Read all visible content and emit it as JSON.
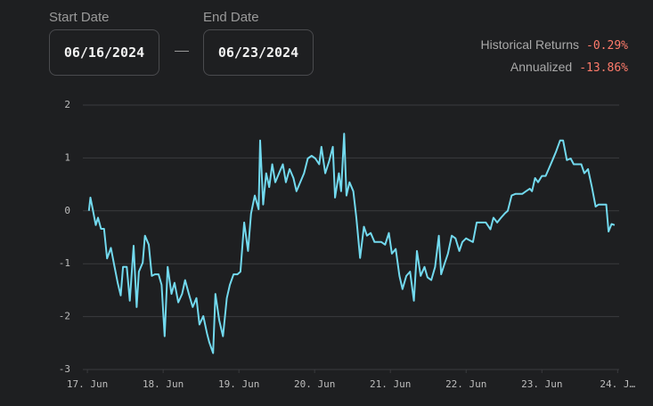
{
  "date_range": {
    "start_label": "Start Date",
    "start_value": "06/16/2024",
    "end_label": "End Date",
    "end_value": "06/23/2024"
  },
  "stats": [
    {
      "label": "Historical Returns",
      "value": "-0.29%"
    },
    {
      "label": "Annualized",
      "value": "-13.86%"
    }
  ],
  "chart_data": {
    "type": "line",
    "grid": true,
    "xlim": [
      -0.06,
      7.02
    ],
    "ylim": [
      -3,
      2
    ],
    "xticks": [
      {
        "value": 0,
        "label": "17. Jun"
      },
      {
        "value": 1,
        "label": "18. Jun"
      },
      {
        "value": 2,
        "label": "19. Jun"
      },
      {
        "value": 3,
        "label": "20. Jun"
      },
      {
        "value": 4,
        "label": "21. Jun"
      },
      {
        "value": 5,
        "label": "22. Jun"
      },
      {
        "value": 6,
        "label": "23. Jun"
      },
      {
        "value": 7,
        "label": "24. J…"
      }
    ],
    "yticks": [
      -3,
      -2,
      -1,
      0,
      1,
      2
    ],
    "x": [
      0.02,
      0.04,
      0.07,
      0.11,
      0.14,
      0.18,
      0.22,
      0.26,
      0.31,
      0.35,
      0.4,
      0.44,
      0.47,
      0.52,
      0.56,
      0.61,
      0.65,
      0.68,
      0.73,
      0.76,
      0.81,
      0.85,
      0.89,
      0.94,
      0.98,
      1.02,
      1.06,
      1.11,
      1.15,
      1.2,
      1.25,
      1.29,
      1.34,
      1.39,
      1.44,
      1.48,
      1.53,
      1.58,
      1.61,
      1.66,
      1.69,
      1.74,
      1.79,
      1.84,
      1.88,
      1.93,
      1.98,
      2.02,
      2.07,
      2.12,
      2.16,
      2.21,
      2.26,
      2.28,
      2.32,
      2.36,
      2.4,
      2.44,
      2.48,
      2.53,
      2.58,
      2.62,
      2.67,
      2.72,
      2.76,
      2.81,
      2.86,
      2.91,
      2.96,
      3.01,
      3.06,
      3.09,
      3.14,
      3.19,
      3.24,
      3.27,
      3.32,
      3.35,
      3.39,
      3.42,
      3.46,
      3.51,
      3.55,
      3.6,
      3.65,
      3.69,
      3.74,
      3.79,
      3.84,
      3.88,
      3.93,
      3.98,
      4.02,
      4.07,
      4.12,
      4.16,
      4.21,
      4.26,
      4.31,
      4.35,
      4.4,
      4.45,
      4.49,
      4.54,
      4.59,
      4.64,
      4.67,
      4.72,
      4.76,
      4.81,
      4.86,
      4.91,
      4.95,
      5.0,
      5.05,
      5.09,
      5.14,
      5.2,
      5.26,
      5.32,
      5.36,
      5.41,
      5.46,
      5.51,
      5.55,
      5.6,
      5.65,
      5.69,
      5.74,
      5.79,
      5.84,
      5.87,
      5.91,
      5.95,
      6.0,
      6.05,
      6.09,
      6.14,
      6.19,
      6.24,
      6.28,
      6.33,
      6.38,
      6.42,
      6.47,
      6.52,
      6.56,
      6.61,
      6.66,
      6.71,
      6.75,
      6.8,
      6.85,
      6.88,
      6.92,
      6.96
    ],
    "series": [
      {
        "color": "#72d9ee",
        "values": [
          0,
          0.25,
          0.03,
          -0.27,
          -0.13,
          -0.34,
          -0.34,
          -0.9,
          -0.7,
          -1.0,
          -1.36,
          -1.6,
          -1.06,
          -1.06,
          -1.7,
          -0.66,
          -1.82,
          -1.15,
          -0.98,
          -0.47,
          -0.64,
          -1.23,
          -1.2,
          -1.2,
          -1.4,
          -2.37,
          -1.06,
          -1.57,
          -1.36,
          -1.73,
          -1.57,
          -1.31,
          -1.57,
          -1.82,
          -1.65,
          -2.15,
          -1.99,
          -2.32,
          -2.49,
          -2.69,
          -1.57,
          -2.07,
          -2.37,
          -1.65,
          -1.4,
          -1.2,
          -1.2,
          -1.15,
          -0.22,
          -0.76,
          -0.05,
          0.29,
          0.03,
          1.33,
          0.12,
          0.71,
          0.45,
          0.88,
          0.54,
          0.71,
          0.88,
          0.54,
          0.79,
          0.62,
          0.37,
          0.54,
          0.71,
          0.99,
          1.04,
          0.99,
          0.88,
          1.21,
          0.71,
          0.93,
          1.21,
          0.25,
          0.71,
          0.37,
          1.46,
          0.29,
          0.54,
          0.37,
          -0.13,
          -0.89,
          -0.3,
          -0.47,
          -0.42,
          -0.59,
          -0.59,
          -0.59,
          -0.64,
          -0.42,
          -0.81,
          -0.72,
          -1.23,
          -1.48,
          -1.23,
          -1.15,
          -1.7,
          -0.76,
          -1.23,
          -1.06,
          -1.26,
          -1.31,
          -1.06,
          -0.47,
          -1.2,
          -0.98,
          -0.81,
          -0.47,
          -0.52,
          -0.76,
          -0.59,
          -0.52,
          -0.56,
          -0.59,
          -0.22,
          -0.22,
          -0.22,
          -0.35,
          -0.13,
          -0.22,
          -0.13,
          -0.05,
          0,
          0.29,
          0.32,
          0.32,
          0.32,
          0.37,
          0.42,
          0.37,
          0.62,
          0.54,
          0.66,
          0.66,
          0.79,
          0.96,
          1.13,
          1.33,
          1.33,
          0.96,
          0.99,
          0.88,
          0.88,
          0.88,
          0.71,
          0.79,
          0.45,
          0.08,
          0.12,
          0.12,
          0.12,
          -0.39,
          -0.25,
          -0.27
        ]
      }
    ]
  }
}
